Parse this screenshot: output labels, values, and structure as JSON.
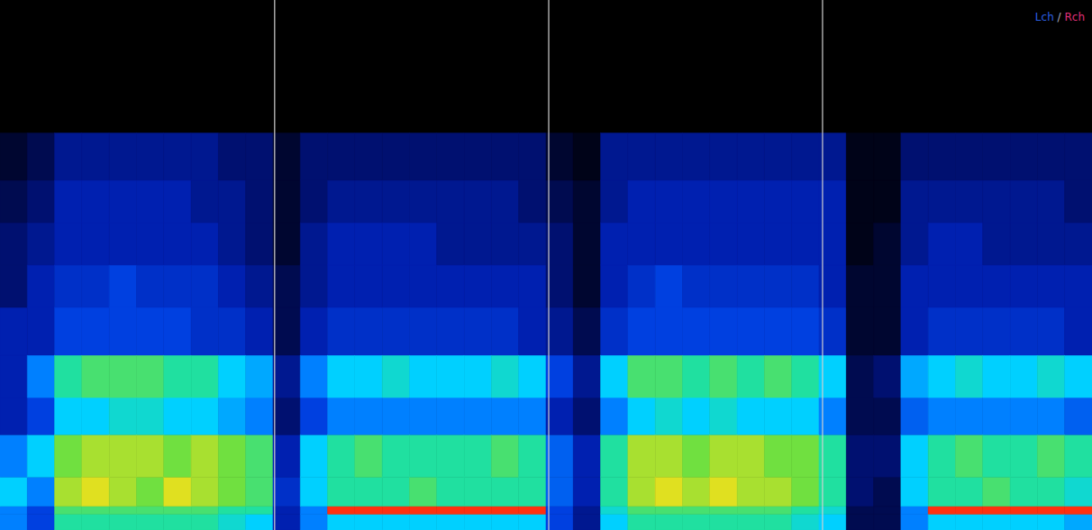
{
  "chart_data": {
    "type": "heatmap",
    "annotation": "Lch / Rch",
    "tick_labels": false,
    "xlim": [
      0,
      40
    ],
    "ylim": [
      0,
      100
    ],
    "y_edges": [
      0,
      3,
      4.5,
      10,
      18,
      25,
      33,
      42,
      50,
      58,
      66,
      75,
      100
    ],
    "zlim": [
      0,
      10
    ],
    "vlines": [
      10.06,
      20.1,
      30.13
    ],
    "cells": [
      [
        5,
        5,
        6,
        5,
        3,
        3,
        3,
        2,
        2,
        1.5,
        1,
        0
      ],
      [
        4,
        4,
        5,
        6,
        4,
        5,
        3,
        3,
        2.5,
        2,
        1.5,
        0
      ],
      [
        7,
        7.5,
        8.5,
        8,
        6,
        7,
        4,
        3.5,
        3,
        3,
        2.5,
        0
      ],
      [
        7,
        7.5,
        9,
        8.5,
        6,
        7.5,
        4,
        3.5,
        3,
        3,
        2.5,
        0
      ],
      [
        7,
        7.5,
        8.5,
        8.5,
        6.5,
        7.5,
        4,
        4,
        3,
        3,
        2.5,
        0
      ],
      [
        7,
        7.5,
        8,
        8.5,
        6.5,
        7.5,
        4,
        3.5,
        3,
        3,
        2.5,
        0
      ],
      [
        7,
        7.5,
        9,
        8,
        6,
        7,
        4,
        3.5,
        3,
        3,
        2.5,
        0
      ],
      [
        7,
        7.5,
        8.5,
        8.5,
        6,
        7,
        3.5,
        3.5,
        3,
        2.5,
        2.5,
        0
      ],
      [
        6.5,
        7,
        8,
        8,
        5.5,
        6,
        3.5,
        3,
        2.5,
        2.5,
        2,
        0
      ],
      [
        6,
        7,
        7.5,
        7.5,
        5,
        5.5,
        3,
        2.5,
        2,
        2,
        2,
        0
      ],
      [
        3,
        3,
        3.5,
        3,
        2,
        2.5,
        1.5,
        1.5,
        1,
        1,
        1,
        0
      ],
      [
        5,
        5,
        6,
        6,
        4,
        5,
        3,
        2.5,
        2.5,
        2,
        2,
        0
      ],
      [
        6,
        10,
        7,
        7,
        5,
        6,
        3.5,
        3,
        3,
        2.5,
        2,
        0
      ],
      [
        6,
        10,
        7,
        7.5,
        5,
        6,
        3.5,
        3,
        3,
        2.5,
        2,
        0
      ],
      [
        6,
        10,
        7,
        7,
        5,
        6.5,
        3.5,
        3,
        3,
        2.5,
        2,
        0
      ],
      [
        6,
        10,
        7.5,
        7,
        5,
        6,
        3.5,
        3,
        3,
        2.5,
        2,
        0
      ],
      [
        6,
        10,
        7,
        7,
        5,
        6,
        3.5,
        3,
        2.5,
        2.5,
        2,
        0
      ],
      [
        6,
        10,
        7,
        7,
        5,
        6,
        3.5,
        3,
        2.5,
        2.5,
        2,
        0
      ],
      [
        6,
        10,
        7,
        7.5,
        5,
        6.5,
        3.5,
        3,
        2.5,
        2.5,
        2,
        0
      ],
      [
        6,
        10,
        7,
        7,
        5,
        6,
        3,
        3,
        2.5,
        2,
        2,
        0
      ],
      [
        4,
        4,
        4.5,
        4.5,
        3,
        4,
        2.5,
        2,
        2,
        1.5,
        1,
        0
      ],
      [
        2.5,
        2.5,
        3,
        3,
        2,
        2.5,
        1.5,
        1,
        1,
        1,
        0.5,
        0
      ],
      [
        6,
        6.5,
        7,
        7,
        5,
        6,
        3.5,
        3,
        3,
        2.5,
        2.5,
        0
      ],
      [
        7,
        7.5,
        8.5,
        8.5,
        6,
        7.5,
        4,
        3.5,
        3,
        3,
        2.5,
        0
      ],
      [
        7,
        7.5,
        9,
        8.5,
        6.5,
        7.5,
        4,
        4,
        3,
        3,
        2.5,
        0
      ],
      [
        7,
        7.5,
        8.5,
        8,
        6,
        7,
        4,
        3.5,
        3,
        3,
        2.5,
        0
      ],
      [
        7,
        7.5,
        9,
        8.5,
        6.5,
        7.5,
        4,
        3.5,
        3,
        3,
        2.5,
        0
      ],
      [
        7,
        7.5,
        8.5,
        8.5,
        6,
        7,
        4,
        3.5,
        3,
        3,
        2.5,
        0
      ],
      [
        7,
        7.5,
        8.5,
        8,
        6,
        7.5,
        4,
        3.5,
        3,
        3,
        2.5,
        0
      ],
      [
        6.5,
        7,
        8,
        8,
        6,
        7,
        4,
        3.5,
        3,
        3,
        2.5,
        0
      ],
      [
        6,
        6.5,
        7,
        7,
        5,
        6,
        3.5,
        3,
        3,
        3,
        2.5,
        0
      ],
      [
        1.5,
        1.5,
        2,
        2,
        1.5,
        1.5,
        1,
        1,
        0.5,
        0.5,
        0.5,
        0
      ],
      [
        1.5,
        1.5,
        1.5,
        2,
        1.5,
        2,
        1,
        1,
        1,
        0.5,
        0.5,
        0
      ],
      [
        5,
        5,
        6,
        6,
        4.5,
        5.5,
        3,
        3,
        2.5,
        2.5,
        2,
        0
      ],
      [
        6,
        10,
        7,
        7,
        5,
        6,
        3.5,
        3,
        3,
        2.5,
        2,
        0
      ],
      [
        6,
        10,
        7,
        7.5,
        5,
        6.5,
        3.5,
        3,
        3,
        2.5,
        2,
        0
      ],
      [
        6,
        10,
        7.5,
        7,
        5,
        6,
        3.5,
        3,
        2.5,
        2.5,
        2,
        0
      ],
      [
        6,
        10,
        7,
        7,
        5,
        6,
        3.5,
        3,
        2.5,
        2.5,
        2,
        0
      ],
      [
        6,
        10,
        7,
        7.5,
        5,
        6.5,
        3.5,
        3,
        2.5,
        2.5,
        2,
        0
      ],
      [
        5.5,
        10,
        6.5,
        7,
        4.5,
        6,
        3,
        3,
        2.5,
        2,
        2,
        0
      ]
    ]
  }
}
